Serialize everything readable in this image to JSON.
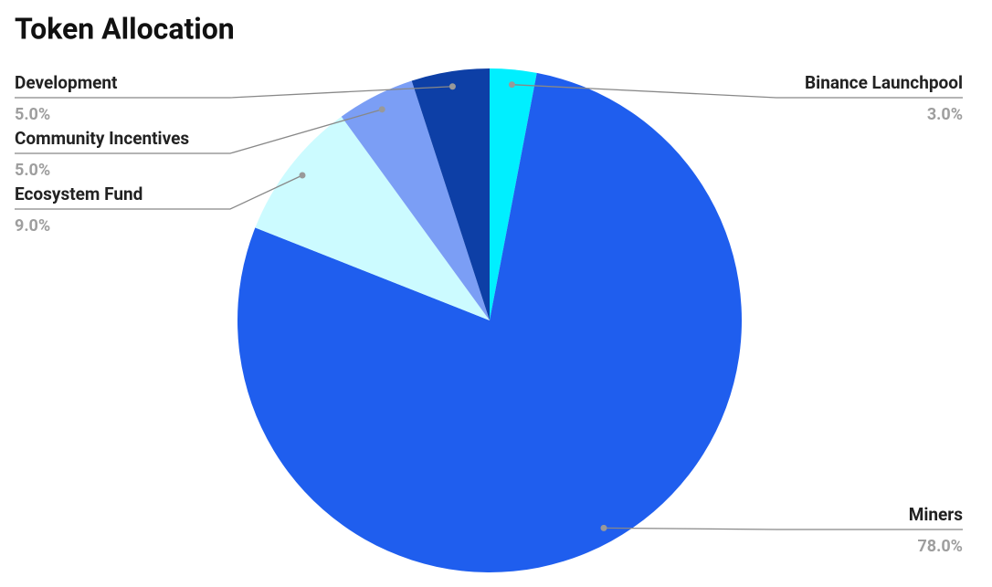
{
  "chart_data": {
    "type": "pie",
    "title": "Token Allocation",
    "categories": [
      "Binance Launchpool",
      "Miners",
      "Ecosystem Fund",
      "Community Incentives",
      "Development"
    ],
    "values": [
      3.0,
      78.0,
      9.0,
      5.0,
      5.0
    ],
    "value_labels": [
      "3.0%",
      "78.0%",
      "9.0%",
      "5.0%",
      "5.0%"
    ],
    "colors": [
      "#00efff",
      "#1f5eee",
      "#ccfbff",
      "#7b9ef5",
      "#0d3fa6"
    ]
  }
}
